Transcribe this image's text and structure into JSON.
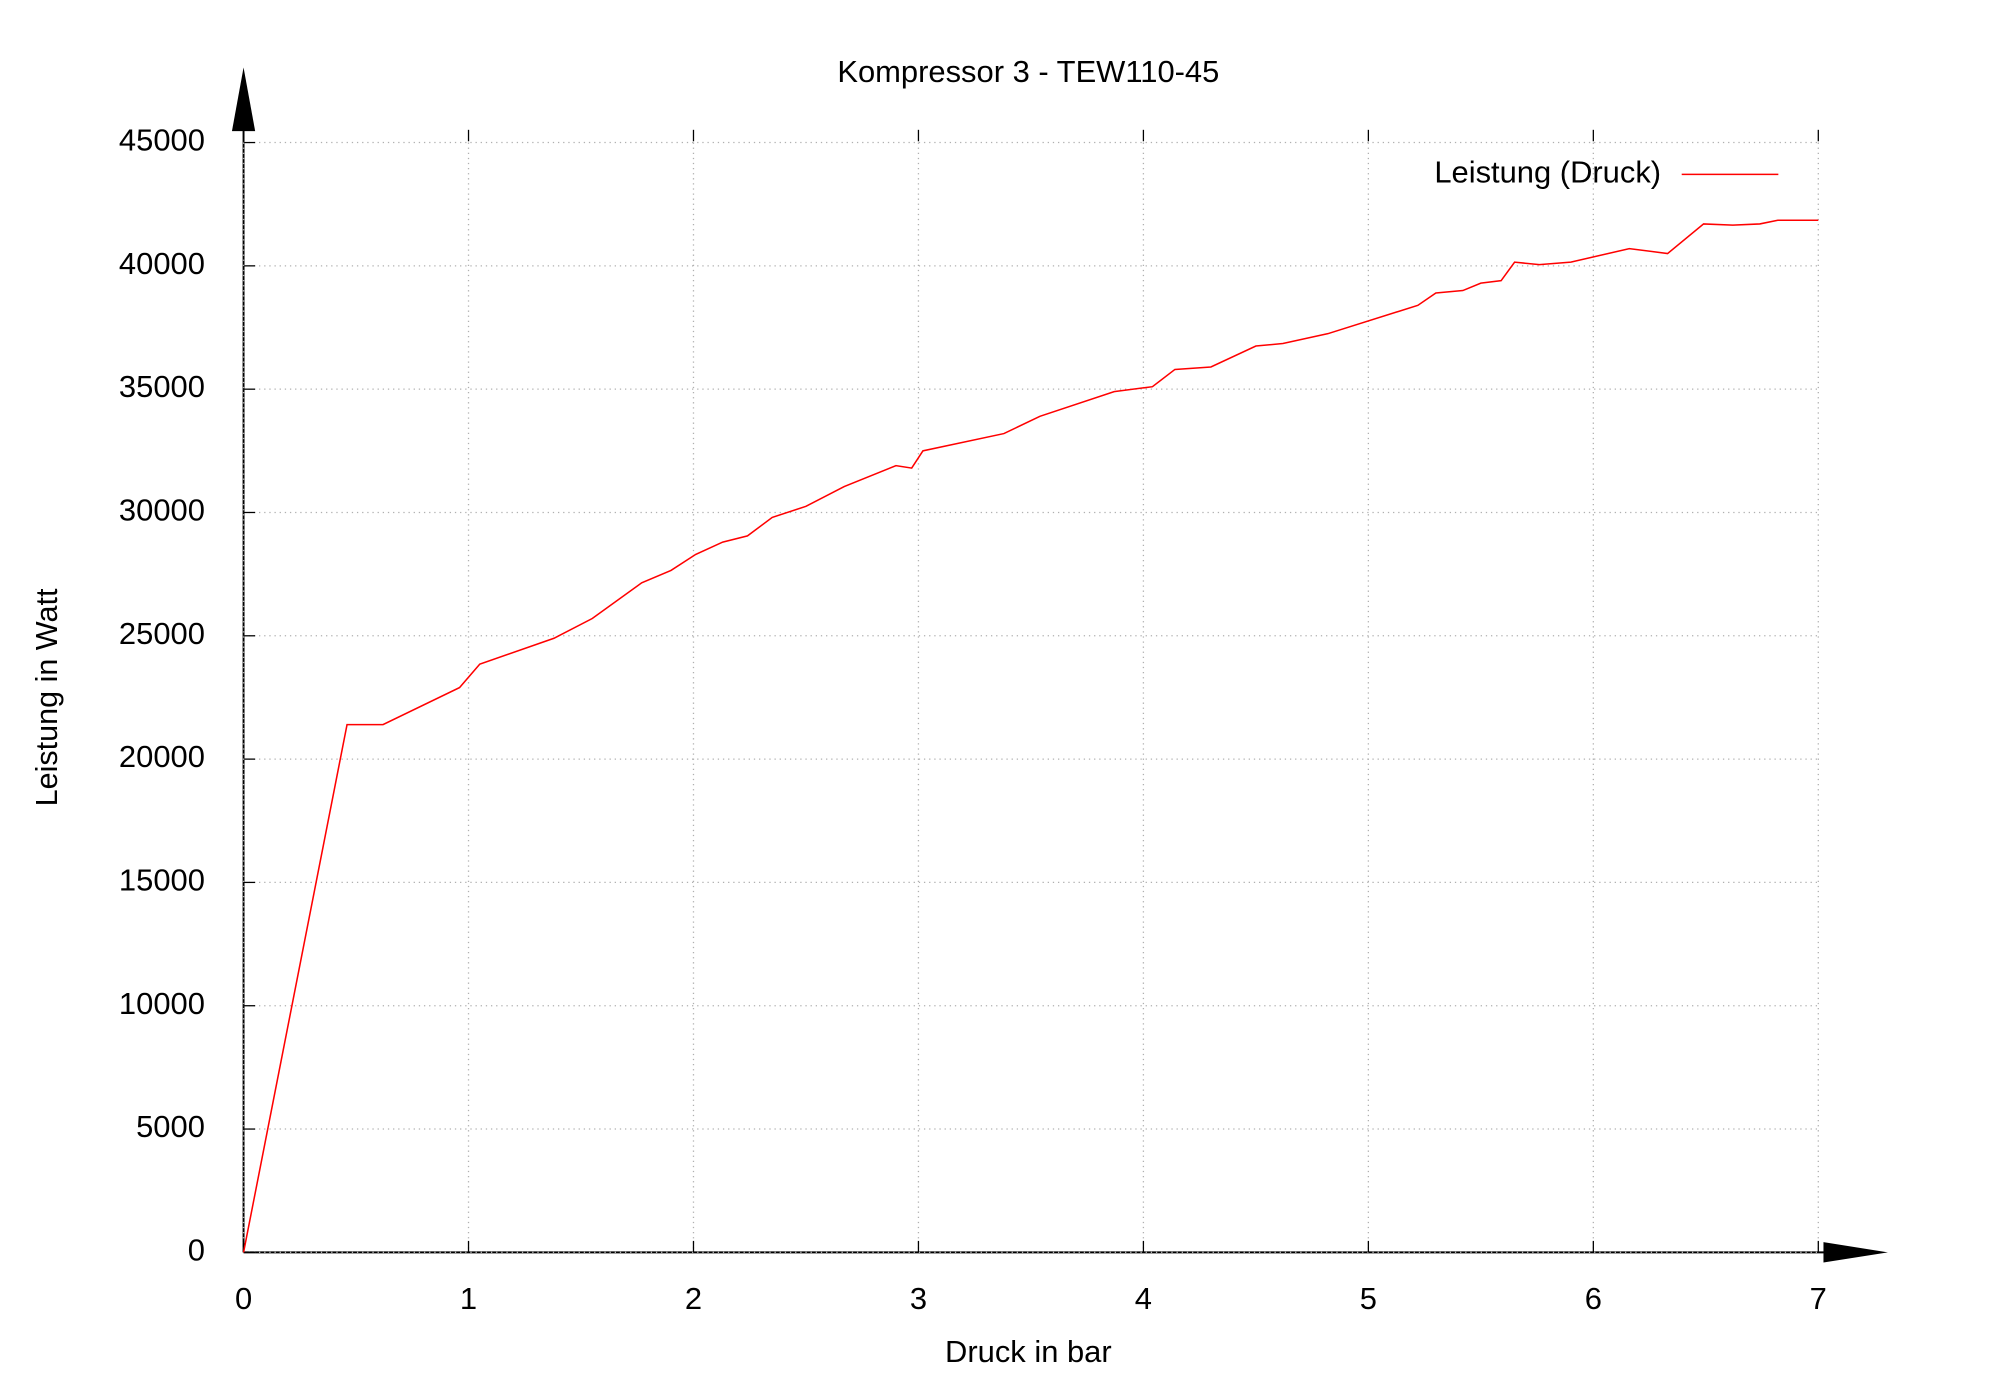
{
  "chart_data": {
    "type": "line",
    "title": "Kompressor 3 - TEW110-45",
    "x_label": "Druck in bar",
    "y_label": "Leistung in Watt",
    "x": [
      0,
      0.46,
      0.62,
      0.96,
      1.05,
      1.38,
      1.55,
      1.77,
      1.9,
      2.01,
      2.13,
      2.24,
      2.35,
      2.5,
      2.67,
      2.9,
      2.97,
      3.02,
      3.38,
      3.54,
      3.87,
      4.04,
      4.14,
      4.3,
      4.5,
      4.62,
      4.82,
      5.22,
      5.3,
      5.42,
      5.5,
      5.59,
      5.65,
      5.76,
      5.9,
      6.16,
      6.33,
      6.49,
      6.62,
      6.74,
      6.82,
      7.0
    ],
    "series": [
      {
        "name": "Leistung (Druck)",
        "color": "#ff0000",
        "values": [
          0,
          21400,
          21400,
          22900,
          23850,
          24900,
          25700,
          27150,
          27650,
          28300,
          28800,
          29050,
          29800,
          30250,
          31050,
          31900,
          31800,
          32500,
          33200,
          33900,
          34900,
          35100,
          35800,
          35900,
          36750,
          36850,
          37250,
          38400,
          38900,
          39000,
          39300,
          39400,
          40150,
          40050,
          40150,
          40700,
          40500,
          41700,
          41650,
          41700,
          41850,
          41850
        ]
      }
    ],
    "xlim": [
      0,
      7
    ],
    "xticks": [
      0,
      1,
      2,
      3,
      4,
      5,
      6,
      7
    ],
    "ylim": [
      0,
      45000
    ],
    "yticks": [
      0,
      5000,
      10000,
      15000,
      20000,
      25000,
      30000,
      35000,
      40000,
      45000
    ],
    "grid": true,
    "legend": "top-right"
  }
}
